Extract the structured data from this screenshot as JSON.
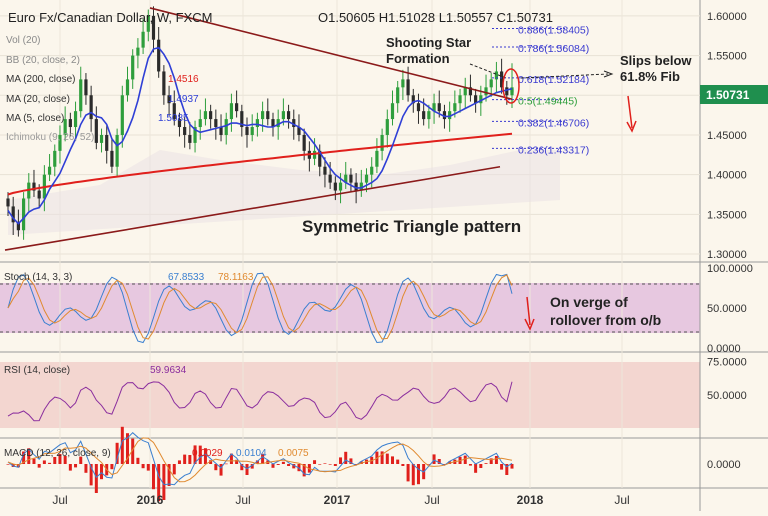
{
  "header": {
    "symbol": "Euro Fx/Canadian Dollar, W, FXCM",
    "ohlc": "O1.50605  H1.51028  L1.50557  C1.50731"
  },
  "indicator_labels": {
    "vol": "Vol (20)",
    "bb": "BB (20, close, 2)",
    "ma200": "MA (200, close)",
    "ma200_val": "1.4516",
    "ma20": "MA (20, close)",
    "ma20_val": "1.4937",
    "ma5": "MA (5, close)",
    "ma5_val": "1.5085",
    "ichimoku": "Ichimoku (9, 26, 52)"
  },
  "annotations": {
    "shooting_star_1": "Shooting Star",
    "shooting_star_2": "Formation",
    "slips_1": "Slips below",
    "slips_2": "61.8% Fib",
    "pattern": "Symmetric Triangle pattern",
    "stoch_note_1": "On verge of",
    "stoch_note_2": "rollover from o/b"
  },
  "fib_labels": [
    "0.886(1.58405)",
    "0.786(1.56084)",
    "0.618(1.52184)",
    "0.5(1.49445)",
    "0.382(1.46706)",
    "0.236(1.43317)"
  ],
  "price_axis_ticks": [
    "1.60000",
    "1.55000",
    "1.50000",
    "1.45000",
    "1.40000",
    "1.35000",
    "1.30000"
  ],
  "current_price": "1.50731",
  "stoch": {
    "label": "Stoch (14, 3, 3)",
    "k": "67.8533",
    "d": "78.1163",
    "ticks": [
      "100.0000",
      "50.0000",
      "0.0000"
    ]
  },
  "rsi": {
    "label": "RSI (14, close)",
    "value": "59.9634",
    "ticks": [
      "75.0000",
      "50.0000"
    ]
  },
  "macd": {
    "label": "MACD (12, 26, close, 9)",
    "v1": "0.0029",
    "v2": "0.0104",
    "v3": "0.0075",
    "ticks": [
      "0.0000"
    ]
  },
  "x_axis_ticks": [
    "Jul",
    "2016",
    "Jul",
    "2017",
    "Jul",
    "2018",
    "Jul"
  ],
  "colors": {
    "background": "#fbf6ec",
    "up": "#2e9e3c",
    "down": "#2b2b2b",
    "ma200": "#e0201c",
    "ma20": "#2f3fd6",
    "trendline": "#8b1a1a",
    "fib": "#3a3ad0",
    "stoch_band": "#e7c8e0",
    "rsi_band": "#f3d6d0",
    "macd_line": "#3a7fd0",
    "signal_line": "#e08a30",
    "price_tag": "#1f8f4e",
    "annotation_red": "#e0201c"
  },
  "chart_data": {
    "type": "candlestick",
    "timeframe": "W",
    "price_range": [
      1.29,
      1.62
    ],
    "x_range_dates": [
      "2015-05",
      "2018-11"
    ],
    "last": {
      "open": 1.50605,
      "high": 1.51028,
      "low": 1.50557,
      "close": 1.50731
    },
    "moving_averages": {
      "ma200": 1.4516,
      "ma20": 1.4937,
      "ma5": 1.5085
    },
    "fibonacci_levels": [
      {
        "ratio": 0.886,
        "price": 1.58405
      },
      {
        "ratio": 0.786,
        "price": 1.56084
      },
      {
        "ratio": 0.618,
        "price": 1.52184
      },
      {
        "ratio": 0.5,
        "price": 1.49445
      },
      {
        "ratio": 0.382,
        "price": 1.46706
      },
      {
        "ratio": 0.236,
        "price": 1.43317
      }
    ],
    "close_series": [
      1.36,
      1.34,
      1.33,
      1.37,
      1.39,
      1.38,
      1.37,
      1.4,
      1.41,
      1.43,
      1.45,
      1.47,
      1.46,
      1.48,
      1.52,
      1.5,
      1.47,
      1.44,
      1.45,
      1.43,
      1.41,
      1.45,
      1.5,
      1.52,
      1.55,
      1.56,
      1.58,
      1.6,
      1.57,
      1.53,
      1.5,
      1.49,
      1.47,
      1.46,
      1.45,
      1.44,
      1.46,
      1.47,
      1.48,
      1.47,
      1.46,
      1.45,
      1.47,
      1.49,
      1.48,
      1.46,
      1.45,
      1.46,
      1.47,
      1.48,
      1.47,
      1.46,
      1.47,
      1.48,
      1.47,
      1.46,
      1.45,
      1.43,
      1.42,
      1.43,
      1.41,
      1.4,
      1.39,
      1.38,
      1.39,
      1.4,
      1.39,
      1.38,
      1.39,
      1.4,
      1.41,
      1.43,
      1.45,
      1.47,
      1.49,
      1.51,
      1.52,
      1.5,
      1.49,
      1.48,
      1.47,
      1.48,
      1.49,
      1.48,
      1.47,
      1.48,
      1.49,
      1.5,
      1.51,
      1.5,
      1.49,
      1.5,
      1.51,
      1.52,
      1.53,
      1.51,
      1.5,
      1.51
    ],
    "stoch_k": 67.8533,
    "stoch_d": 78.1163,
    "rsi_value": 59.9634,
    "macd_values": [
      0.0029,
      0.0104,
      0.0075
    ]
  }
}
